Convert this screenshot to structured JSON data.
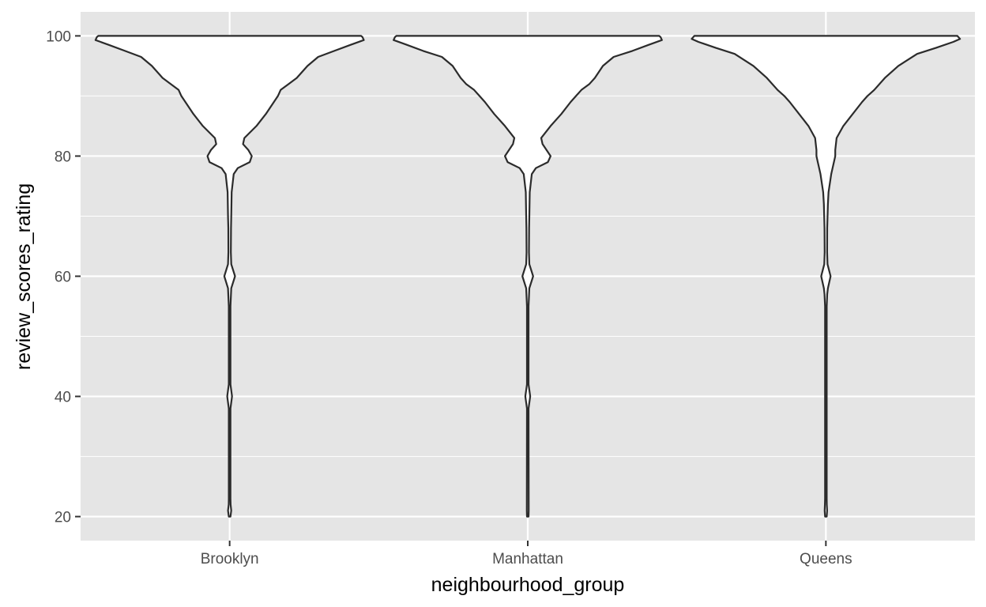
{
  "chart_data": {
    "type": "violin",
    "title": "",
    "xlabel": "neighbourhood_group",
    "ylabel": "review_scores_rating",
    "ylim": [
      16,
      104
    ],
    "yticks": [
      20,
      40,
      60,
      80,
      100
    ],
    "grid": true,
    "legend": "none",
    "colors": {
      "panel": "#e5e5e5",
      "grid": "#ffffff",
      "violin_fill": "#ffffff",
      "violin_stroke": "#2b2b2b",
      "tick_text": "#4d4d4d",
      "title_text": "#000000"
    },
    "categories": [
      "Brooklyn",
      "Manhattan",
      "Queens"
    ],
    "series": [
      {
        "category": "Brooklyn",
        "density": [
          [
            20,
            0.006
          ],
          [
            21,
            0.012
          ],
          [
            22,
            0.007
          ],
          [
            23,
            0.006
          ],
          [
            38,
            0.006
          ],
          [
            40,
            0.018
          ],
          [
            42,
            0.006
          ],
          [
            55,
            0.006
          ],
          [
            58,
            0.012
          ],
          [
            60,
            0.04
          ],
          [
            62,
            0.012
          ],
          [
            64,
            0.009
          ],
          [
            68,
            0.01
          ],
          [
            70,
            0.012
          ],
          [
            74,
            0.015
          ],
          [
            77,
            0.03
          ],
          [
            78,
            0.06
          ],
          [
            79,
            0.15
          ],
          [
            80,
            0.165
          ],
          [
            81,
            0.14
          ],
          [
            82,
            0.1
          ],
          [
            83,
            0.11
          ],
          [
            85,
            0.2
          ],
          [
            87,
            0.27
          ],
          [
            89,
            0.33
          ],
          [
            90,
            0.36
          ],
          [
            91,
            0.38
          ],
          [
            92,
            0.44
          ],
          [
            93,
            0.5
          ],
          [
            95,
            0.58
          ],
          [
            96.5,
            0.66
          ],
          [
            97.5,
            0.78
          ],
          [
            98.5,
            0.9
          ],
          [
            99.3,
            1.0
          ],
          [
            99.8,
            0.99
          ],
          [
            100,
            0.98
          ]
        ]
      },
      {
        "category": "Manhattan",
        "density": [
          [
            20,
            0.006
          ],
          [
            21,
            0.007
          ],
          [
            38,
            0.006
          ],
          [
            40,
            0.018
          ],
          [
            42,
            0.006
          ],
          [
            55,
            0.006
          ],
          [
            58,
            0.012
          ],
          [
            60,
            0.04
          ],
          [
            62,
            0.012
          ],
          [
            64,
            0.009
          ],
          [
            68,
            0.01
          ],
          [
            70,
            0.012
          ],
          [
            74,
            0.015
          ],
          [
            77,
            0.03
          ],
          [
            78,
            0.06
          ],
          [
            79,
            0.15
          ],
          [
            80,
            0.17
          ],
          [
            81,
            0.14
          ],
          [
            82,
            0.11
          ],
          [
            83,
            0.1
          ],
          [
            85,
            0.17
          ],
          [
            87,
            0.25
          ],
          [
            89,
            0.32
          ],
          [
            90,
            0.36
          ],
          [
            91,
            0.4
          ],
          [
            92,
            0.46
          ],
          [
            93,
            0.5
          ],
          [
            95,
            0.56
          ],
          [
            96.5,
            0.64
          ],
          [
            97.5,
            0.78
          ],
          [
            98.5,
            0.9
          ],
          [
            99.3,
            1.0
          ],
          [
            99.8,
            0.99
          ],
          [
            100,
            0.98
          ]
        ]
      },
      {
        "category": "Queens",
        "density": [
          [
            20,
            0.006
          ],
          [
            21,
            0.009
          ],
          [
            22,
            0.007
          ],
          [
            23,
            0.006
          ],
          [
            55,
            0.006
          ],
          [
            57,
            0.01
          ],
          [
            58,
            0.015
          ],
          [
            60,
            0.035
          ],
          [
            62,
            0.012
          ],
          [
            64,
            0.009
          ],
          [
            68,
            0.01
          ],
          [
            72,
            0.015
          ],
          [
            74,
            0.02
          ],
          [
            77,
            0.04
          ],
          [
            79,
            0.06
          ],
          [
            80,
            0.07
          ],
          [
            81,
            0.07
          ],
          [
            83,
            0.08
          ],
          [
            85,
            0.13
          ],
          [
            87,
            0.2
          ],
          [
            89,
            0.27
          ],
          [
            90,
            0.31
          ],
          [
            91,
            0.36
          ],
          [
            93,
            0.44
          ],
          [
            95,
            0.54
          ],
          [
            97,
            0.68
          ],
          [
            98,
            0.82
          ],
          [
            99,
            0.95
          ],
          [
            99.5,
            1.0
          ],
          [
            100,
            0.98
          ]
        ]
      }
    ]
  }
}
